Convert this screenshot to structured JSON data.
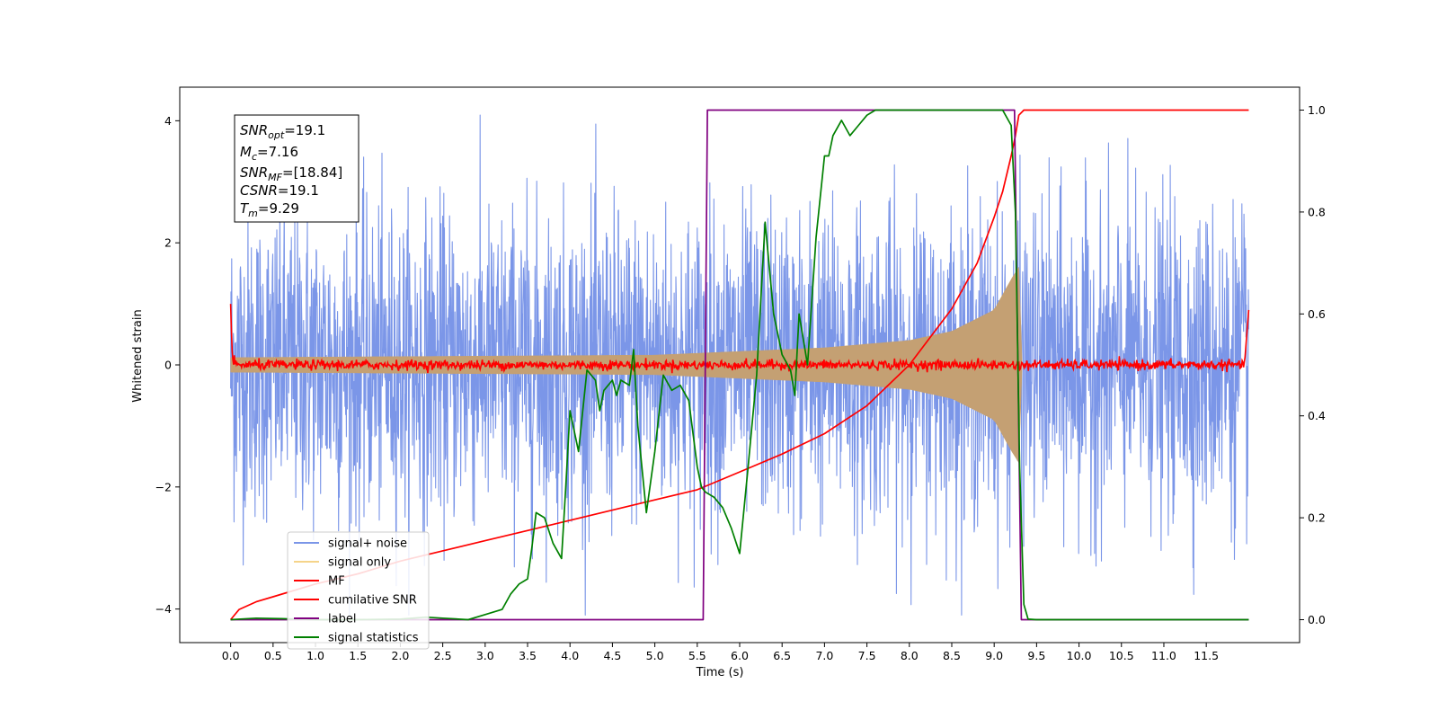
{
  "chart_data": {
    "type": "line",
    "xlabel": "Time (s)",
    "ylabel": "Whitened strain",
    "xlim": [
      -0.6,
      12.6
    ],
    "ylim": [
      -4.55,
      4.55
    ],
    "y2lim": [
      -0.045,
      1.045
    ],
    "x_ticks": [
      "0.0",
      "0.5",
      "1.0",
      "1.5",
      "2.0",
      "2.5",
      "3.0",
      "3.5",
      "4.0",
      "4.5",
      "5.0",
      "5.5",
      "6.0",
      "6.5",
      "7.0",
      "7.5",
      "8.0",
      "8.5",
      "9.0",
      "9.5",
      "10.0",
      "10.5",
      "11.0",
      "11.5"
    ],
    "y_ticks": [
      "4",
      "2",
      "0",
      "−2",
      "−4"
    ],
    "y2_ticks": [
      "1.0",
      "0.8",
      "0.6",
      "0.4",
      "0.2",
      "0.0"
    ],
    "annotation": {
      "lines": [
        {
          "sym": "SNR",
          "sub": "opt",
          "val": "=19.1"
        },
        {
          "sym": "M",
          "sub": "c",
          "val": "=7.16"
        },
        {
          "sym": "SNR",
          "sub": "MF",
          "val": "=[18.84]"
        },
        {
          "sym": "CSNR",
          "sub": "",
          "val": "=19.1"
        },
        {
          "sym": "T",
          "sub": "m",
          "val": "=9.29"
        }
      ]
    },
    "legend": {
      "position": "lower-left",
      "entries": [
        {
          "label": "signal+ noise",
          "color": "#7b96e8"
        },
        {
          "label": "signal only",
          "color": "#f5d48a"
        },
        {
          "label": "MF",
          "color": "#ff0000"
        },
        {
          "label": "cumilative SNR",
          "color": "#ff0000"
        },
        {
          "label": "label",
          "color": "#800080"
        },
        {
          "label": "signal statistics",
          "color": "#008000"
        }
      ]
    },
    "series": [
      {
        "name": "signal+ noise",
        "axis": "left",
        "color": "#7b96e8",
        "kind": "noise",
        "duration": 12.0,
        "amplitude_std": 1.25,
        "peak_range": [
          -4.1,
          4.1
        ]
      },
      {
        "name": "signal only",
        "axis": "left",
        "color": "#c4a073",
        "kind": "chirp_envelope",
        "merger_time": 9.29,
        "envelope": [
          [
            0.0,
            0.12
          ],
          [
            5.0,
            0.16
          ],
          [
            7.0,
            0.28
          ],
          [
            8.0,
            0.4
          ],
          [
            8.5,
            0.55
          ],
          [
            9.0,
            0.9
          ],
          [
            9.2,
            1.4
          ],
          [
            9.29,
            1.6
          ]
        ]
      },
      {
        "name": "MF",
        "axis": "left",
        "color": "#ff0000",
        "kind": "mf_noise",
        "start_value": 1.0,
        "end_value": 0.9,
        "std": 0.04
      },
      {
        "name": "cumilative SNR",
        "axis": "right",
        "color": "#ff0000",
        "x": [
          0.0,
          0.1,
          0.3,
          0.5,
          1.0,
          1.5,
          2.0,
          2.5,
          3.0,
          3.5,
          4.0,
          4.5,
          5.0,
          5.5,
          6.0,
          6.5,
          7.0,
          7.5,
          8.0,
          8.5,
          8.8,
          9.0,
          9.1,
          9.2,
          9.25,
          9.29,
          9.35,
          12.0
        ],
        "y": [
          0.0,
          0.02,
          0.035,
          0.045,
          0.07,
          0.09,
          0.115,
          0.135,
          0.155,
          0.175,
          0.195,
          0.215,
          0.235,
          0.255,
          0.29,
          0.325,
          0.365,
          0.42,
          0.5,
          0.61,
          0.7,
          0.79,
          0.84,
          0.91,
          0.95,
          0.99,
          1.0,
          1.0
        ]
      },
      {
        "name": "label",
        "axis": "right",
        "color": "#800080",
        "x": [
          0.0,
          5.57,
          5.62,
          9.24,
          9.32,
          12.0
        ],
        "y": [
          0.0,
          0.0,
          1.0,
          1.0,
          0.0,
          0.0
        ]
      },
      {
        "name": "signal statistics",
        "axis": "right",
        "color": "#008000",
        "x": [
          0.0,
          0.3,
          0.6,
          1.0,
          1.5,
          2.0,
          2.3,
          2.5,
          2.8,
          3.0,
          3.2,
          3.3,
          3.4,
          3.5,
          3.55,
          3.6,
          3.7,
          3.8,
          3.9,
          3.95,
          4.0,
          4.1,
          4.2,
          4.3,
          4.35,
          4.4,
          4.5,
          4.55,
          4.6,
          4.7,
          4.75,
          4.8,
          4.9,
          5.0,
          5.1,
          5.2,
          5.3,
          5.4,
          5.5,
          5.55,
          5.6,
          5.7,
          5.8,
          5.9,
          6.0,
          6.1,
          6.2,
          6.3,
          6.4,
          6.5,
          6.6,
          6.65,
          6.7,
          6.8,
          6.9,
          7.0,
          7.05,
          7.1,
          7.2,
          7.3,
          7.4,
          7.5,
          7.6,
          7.7,
          8.0,
          8.5,
          9.0,
          9.1,
          9.2,
          9.25,
          9.3,
          9.35,
          9.4,
          9.5,
          12.0
        ],
        "y": [
          0.0,
          0.003,
          0.002,
          0.0,
          0.0,
          0.001,
          0.005,
          0.003,
          0.0,
          0.01,
          0.02,
          0.05,
          0.07,
          0.08,
          0.14,
          0.21,
          0.2,
          0.15,
          0.12,
          0.26,
          0.41,
          0.33,
          0.49,
          0.47,
          0.41,
          0.45,
          0.47,
          0.44,
          0.47,
          0.46,
          0.53,
          0.38,
          0.21,
          0.33,
          0.48,
          0.45,
          0.46,
          0.43,
          0.3,
          0.26,
          0.25,
          0.24,
          0.22,
          0.18,
          0.13,
          0.3,
          0.48,
          0.78,
          0.6,
          0.52,
          0.49,
          0.44,
          0.6,
          0.5,
          0.75,
          0.91,
          0.91,
          0.95,
          0.98,
          0.95,
          0.97,
          0.99,
          1.0,
          1.0,
          1.0,
          1.0,
          1.0,
          1.0,
          0.97,
          0.8,
          0.3,
          0.03,
          0.001,
          0.0,
          0.0
        ]
      }
    ]
  }
}
